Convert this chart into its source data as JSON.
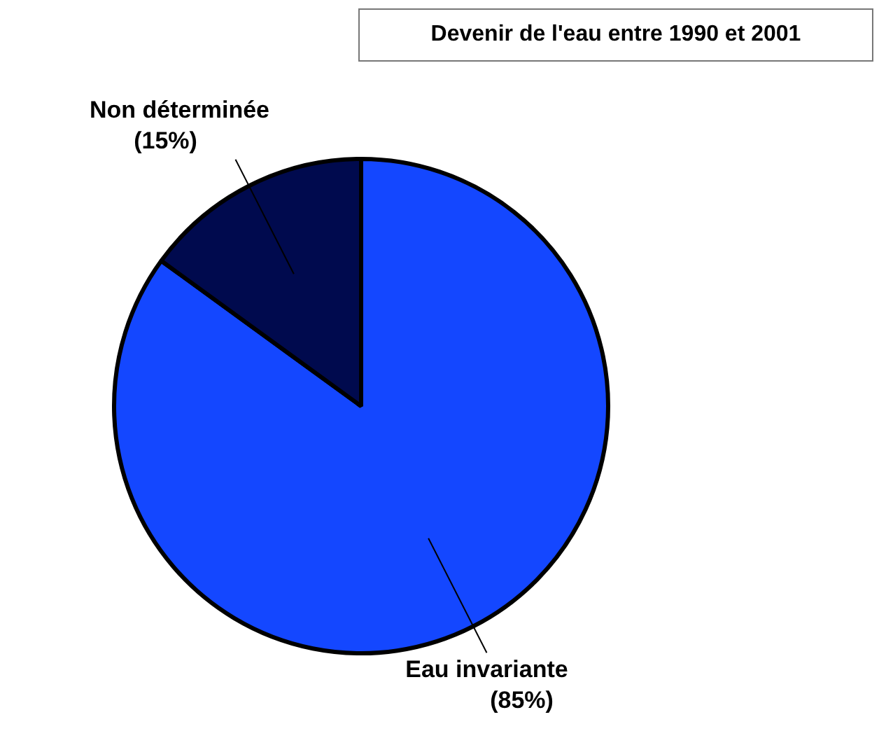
{
  "chart_data": {
    "type": "pie",
    "title": "Devenir de l'eau entre 1990 et 2001",
    "categories": [
      "Eau invariante",
      "Non déterminée"
    ],
    "values": [
      85,
      15
    ],
    "colors": [
      "#1447ff",
      "#000a4e"
    ],
    "value_labels": [
      "(85%)",
      "(15%)"
    ],
    "legend": false
  }
}
